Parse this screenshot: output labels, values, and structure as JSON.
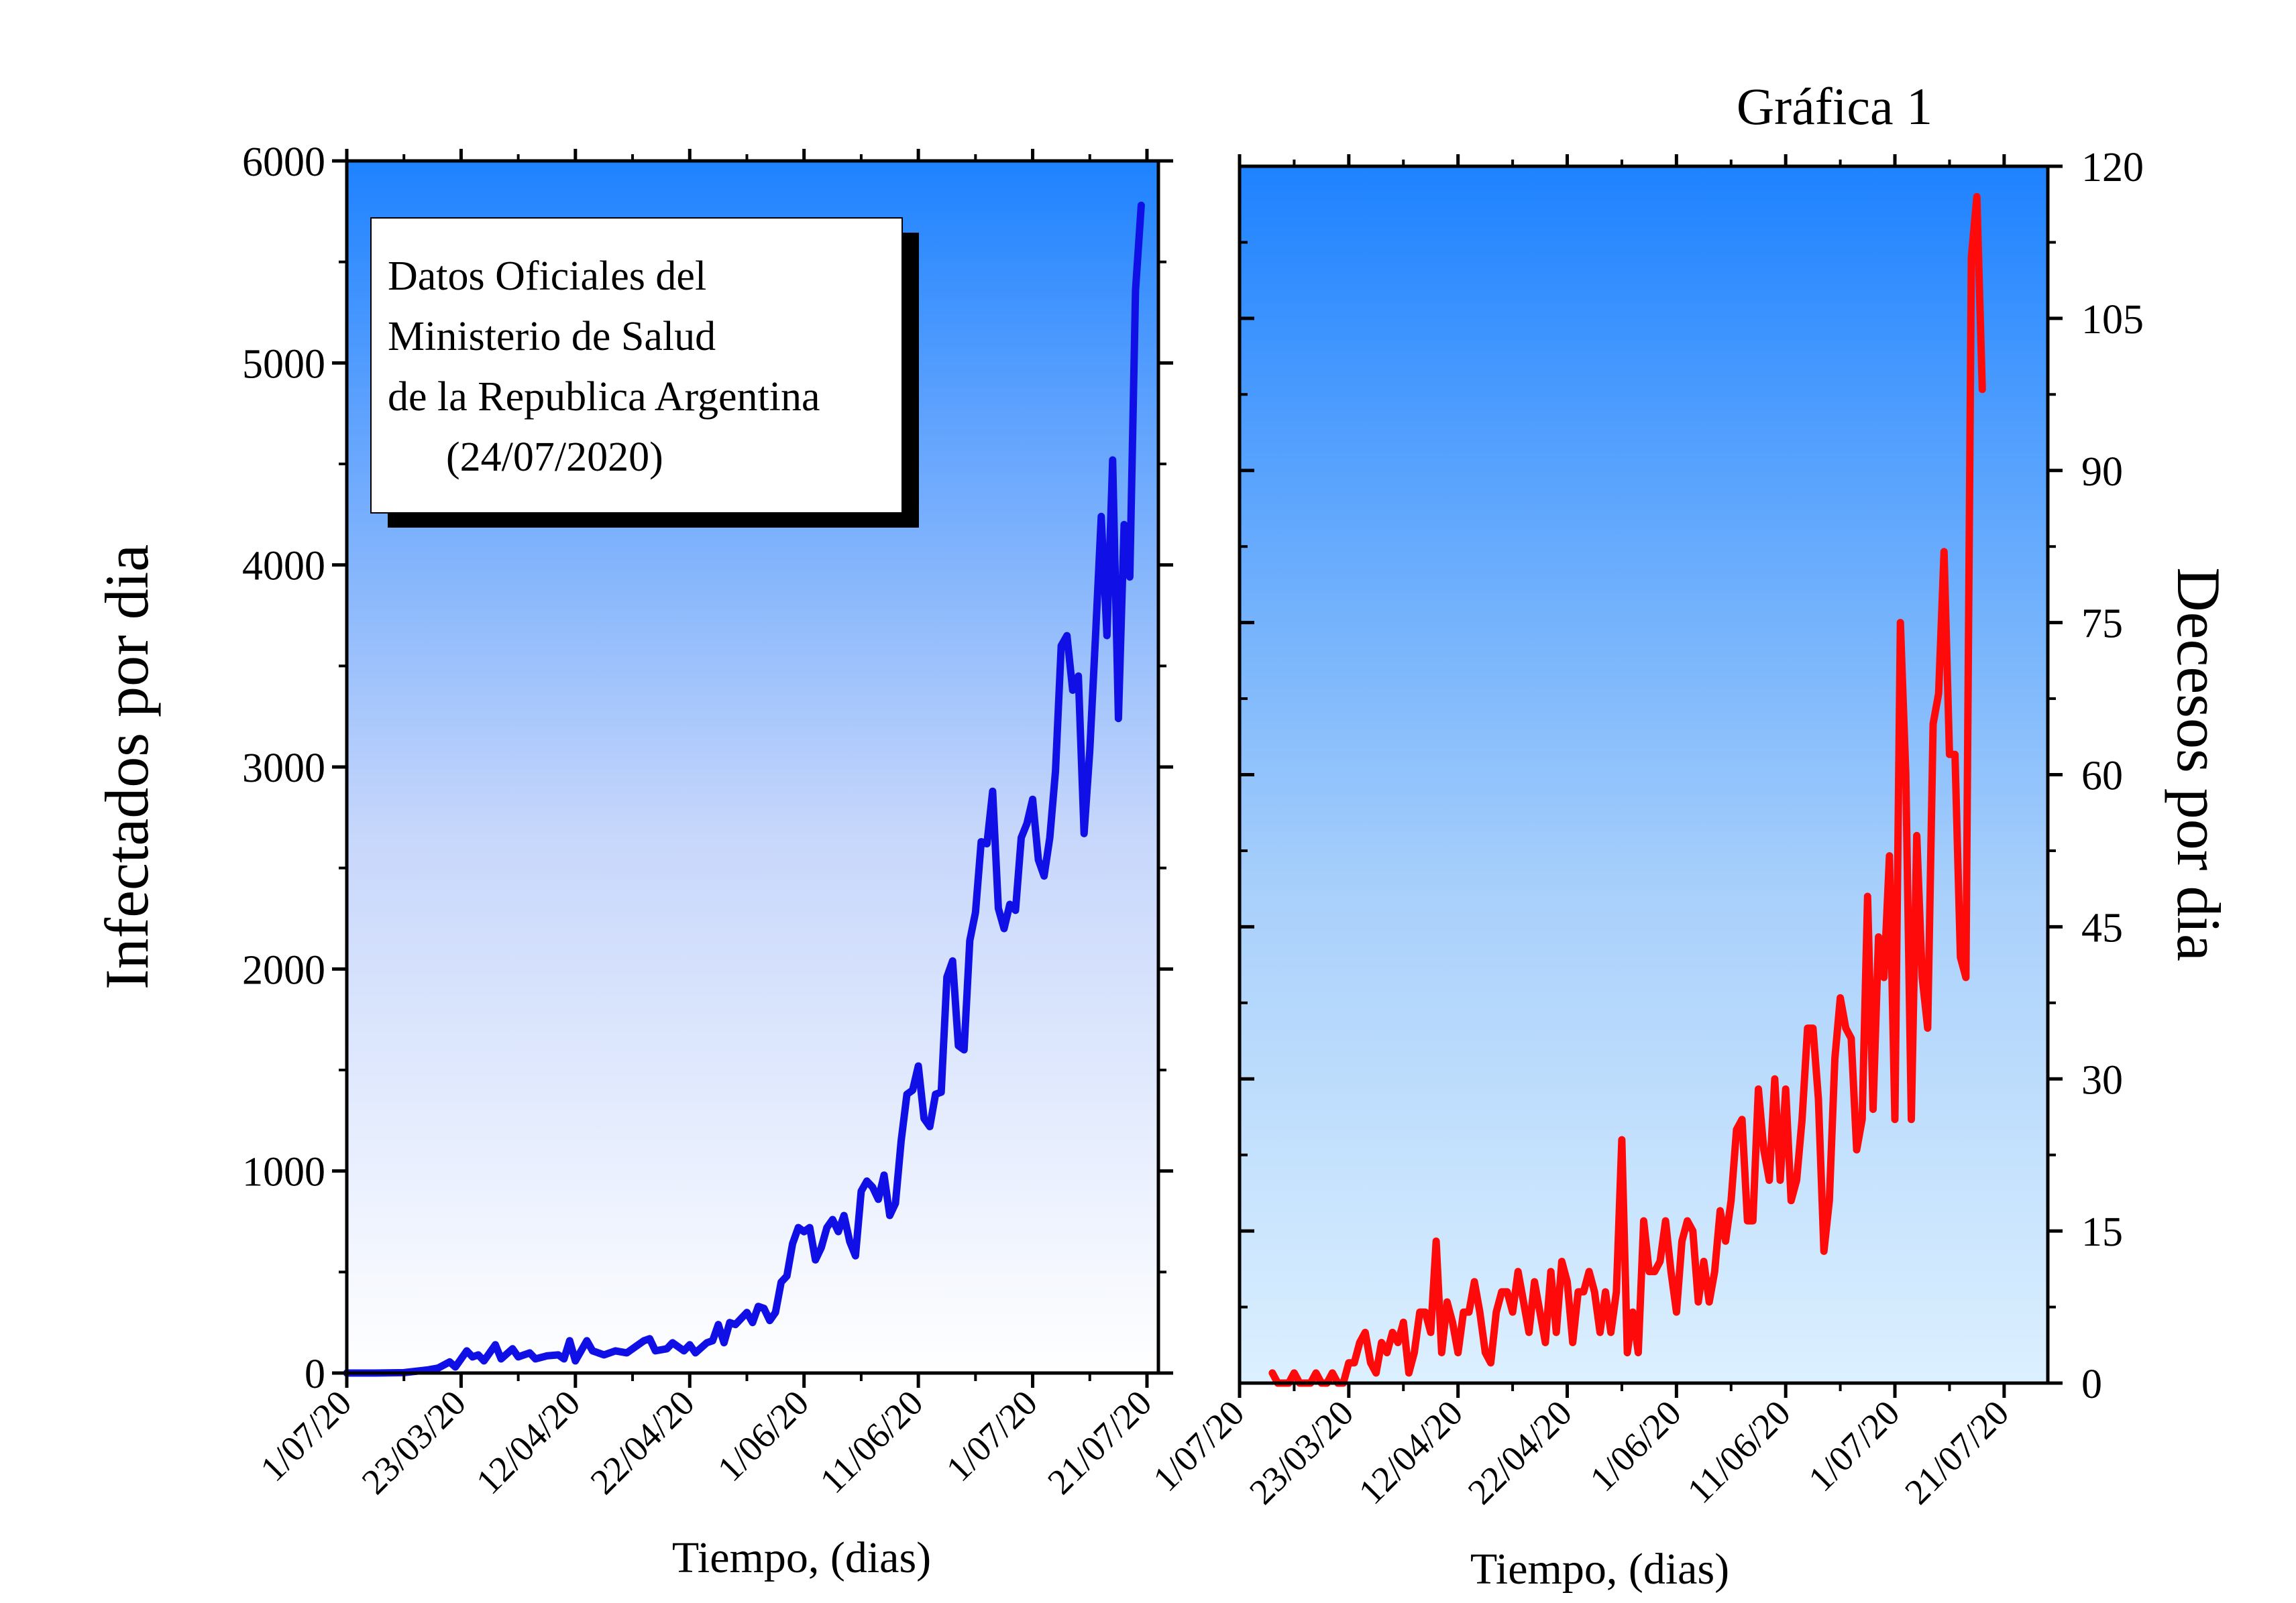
{
  "figure_title": "Gráfica 1",
  "annotation": {
    "lines": [
      "Datos Oficiales del",
      "Ministerio de Salud",
      "de la Republica Argentina",
      "(24/07/2020)"
    ]
  },
  "chart_data": [
    {
      "type": "line",
      "panel": "left",
      "xlabel": "Tiempo, (dias)",
      "ylabel": "Infectados por dia",
      "xlim": [
        0,
        142
      ],
      "ylim": [
        0,
        6000
      ],
      "y_ticks": [
        "0",
        "1000",
        "2000",
        "3000",
        "4000",
        "5000",
        "6000"
      ],
      "x_tick_positions": [
        0,
        20,
        40,
        60,
        80,
        100,
        120,
        140
      ],
      "x_tick_labels": [
        "1/07/20",
        "23/03/20",
        "12/04/20",
        "22/04/20",
        "1/06/20",
        "11/06/20",
        "1/07/20",
        "21/07/20"
      ],
      "background": {
        "top": "#1e82ff",
        "bottom": "#ffffff"
      },
      "series": [
        {
          "color": "#1010e6",
          "points": [
            [
              0,
              0
            ],
            [
              5,
              0
            ],
            [
              10,
              2
            ],
            [
              14,
              15
            ],
            [
              16,
              25
            ],
            [
              18,
              55
            ],
            [
              19,
              30
            ],
            [
              21,
              110
            ],
            [
              22,
              80
            ],
            [
              23,
              90
            ],
            [
              24,
              60
            ],
            [
              26,
              140
            ],
            [
              27,
              70
            ],
            [
              29,
              120
            ],
            [
              30,
              80
            ],
            [
              32,
              100
            ],
            [
              33,
              70
            ],
            [
              35,
              85
            ],
            [
              37,
              90
            ],
            [
              38,
              70
            ],
            [
              39,
              160
            ],
            [
              40,
              60
            ],
            [
              42,
              160
            ],
            [
              43,
              110
            ],
            [
              45,
              90
            ],
            [
              47,
              110
            ],
            [
              49,
              100
            ],
            [
              51,
              140
            ],
            [
              52,
              160
            ],
            [
              53,
              170
            ],
            [
              54,
              110
            ],
            [
              56,
              120
            ],
            [
              57,
              150
            ],
            [
              59,
              110
            ],
            [
              60,
              140
            ],
            [
              61,
              100
            ],
            [
              63,
              150
            ],
            [
              64,
              160
            ],
            [
              65,
              240
            ],
            [
              66,
              150
            ],
            [
              67,
              250
            ],
            [
              68,
              240
            ],
            [
              70,
              300
            ],
            [
              71,
              250
            ],
            [
              72,
              330
            ],
            [
              73,
              320
            ],
            [
              74,
              260
            ],
            [
              75,
              300
            ],
            [
              76,
              450
            ],
            [
              77,
              480
            ],
            [
              78,
              640
            ],
            [
              79,
              720
            ],
            [
              80,
              700
            ],
            [
              81,
              720
            ],
            [
              82,
              560
            ],
            [
              83,
              620
            ],
            [
              84,
              720
            ],
            [
              85,
              760
            ],
            [
              86,
              700
            ],
            [
              87,
              780
            ],
            [
              88,
              650
            ],
            [
              89,
              580
            ],
            [
              90,
              900
            ],
            [
              91,
              950
            ],
            [
              92,
              920
            ],
            [
              93,
              860
            ],
            [
              94,
              980
            ],
            [
              95,
              780
            ],
            [
              96,
              840
            ],
            [
              97,
              1150
            ],
            [
              98,
              1380
            ],
            [
              99,
              1400
            ],
            [
              100,
              1520
            ],
            [
              101,
              1260
            ],
            [
              102,
              1220
            ],
            [
              103,
              1380
            ],
            [
              104,
              1390
            ],
            [
              105,
              1960
            ],
            [
              106,
              2040
            ],
            [
              107,
              1620
            ],
            [
              108,
              1600
            ],
            [
              109,
              2140
            ],
            [
              110,
              2280
            ],
            [
              111,
              2630
            ],
            [
              112,
              2620
            ],
            [
              113,
              2880
            ],
            [
              114,
              2300
            ],
            [
              115,
              2200
            ],
            [
              116,
              2320
            ],
            [
              117,
              2290
            ],
            [
              118,
              2650
            ],
            [
              119,
              2720
            ],
            [
              120,
              2840
            ],
            [
              121,
              2540
            ],
            [
              122,
              2460
            ],
            [
              123,
              2650
            ],
            [
              124,
              2980
            ],
            [
              125,
              3600
            ],
            [
              126,
              3650
            ],
            [
              127,
              3380
            ],
            [
              128,
              3450
            ],
            [
              129,
              2670
            ],
            [
              130,
              3080
            ],
            [
              131,
              3650
            ],
            [
              132,
              4240
            ],
            [
              133,
              3650
            ],
            [
              134,
              4520
            ],
            [
              135,
              3240
            ],
            [
              136,
              4200
            ],
            [
              137,
              3940
            ],
            [
              138,
              5360
            ],
            [
              139,
              5780
            ]
          ]
        }
      ]
    },
    {
      "type": "line",
      "panel": "right",
      "xlabel": "Tiempo, (dias)",
      "ylabel": "Decesos por dia",
      "xlim": [
        0,
        148
      ],
      "ylim": [
        0,
        120
      ],
      "y_ticks": [
        "0",
        "15",
        "30",
        "45",
        "60",
        "75",
        "90",
        "105",
        "120"
      ],
      "x_tick_positions": [
        0,
        20,
        40,
        60,
        80,
        100,
        120,
        140
      ],
      "x_tick_labels": [
        "1/07/20",
        "23/03/20",
        "12/04/20",
        "22/04/20",
        "1/06/20",
        "11/06/20",
        "1/07/20",
        "21/07/20"
      ],
      "background": {
        "top": "#1e82ff",
        "bottom": "#dcf0ff"
      },
      "series": [
        {
          "color": "#ff0a0a",
          "points": [
            [
              6,
              1
            ],
            [
              7,
              0
            ],
            [
              9,
              0
            ],
            [
              10,
              1
            ],
            [
              11,
              0
            ],
            [
              13,
              0
            ],
            [
              14,
              1
            ],
            [
              15,
              0
            ],
            [
              16,
              0
            ],
            [
              17,
              1
            ],
            [
              18,
              0
            ],
            [
              19,
              0
            ],
            [
              20,
              2
            ],
            [
              21,
              2
            ],
            [
              22,
              4
            ],
            [
              23,
              5
            ],
            [
              24,
              2
            ],
            [
              25,
              1
            ],
            [
              26,
              4
            ],
            [
              27,
              3
            ],
            [
              28,
              5
            ],
            [
              29,
              4
            ],
            [
              30,
              6
            ],
            [
              31,
              1
            ],
            [
              32,
              3
            ],
            [
              33,
              7
            ],
            [
              34,
              7
            ],
            [
              35,
              5
            ],
            [
              36,
              14
            ],
            [
              37,
              3
            ],
            [
              38,
              8
            ],
            [
              39,
              6
            ],
            [
              40,
              3
            ],
            [
              41,
              7
            ],
            [
              42,
              7
            ],
            [
              43,
              10
            ],
            [
              44,
              7
            ],
            [
              45,
              3
            ],
            [
              46,
              2
            ],
            [
              47,
              7
            ],
            [
              48,
              9
            ],
            [
              49,
              9
            ],
            [
              50,
              7
            ],
            [
              51,
              11
            ],
            [
              52,
              8
            ],
            [
              53,
              5
            ],
            [
              54,
              10
            ],
            [
              55,
              7
            ],
            [
              56,
              4
            ],
            [
              57,
              11
            ],
            [
              58,
              5
            ],
            [
              59,
              12
            ],
            [
              60,
              10
            ],
            [
              61,
              4
            ],
            [
              62,
              9
            ],
            [
              63,
              9
            ],
            [
              64,
              11
            ],
            [
              65,
              9
            ],
            [
              66,
              5
            ],
            [
              67,
              9
            ],
            [
              68,
              5
            ],
            [
              69,
              9
            ],
            [
              70,
              24
            ],
            [
              71,
              3
            ],
            [
              72,
              7
            ],
            [
              73,
              3
            ],
            [
              74,
              16
            ],
            [
              75,
              11
            ],
            [
              76,
              11
            ],
            [
              77,
              12
            ],
            [
              78,
              16
            ],
            [
              79,
              11
            ],
            [
              80,
              7
            ],
            [
              81,
              14
            ],
            [
              82,
              16
            ],
            [
              83,
              15
            ],
            [
              84,
              8
            ],
            [
              85,
              12
            ],
            [
              86,
              8
            ],
            [
              87,
              11
            ],
            [
              88,
              17
            ],
            [
              89,
              14
            ],
            [
              90,
              18
            ],
            [
              91,
              25
            ],
            [
              92,
              26
            ],
            [
              93,
              16
            ],
            [
              94,
              16
            ],
            [
              95,
              29
            ],
            [
              96,
              23
            ],
            [
              97,
              20
            ],
            [
              98,
              30
            ],
            [
              99,
              20
            ],
            [
              100,
              29
            ],
            [
              101,
              18
            ],
            [
              102,
              20
            ],
            [
              103,
              26
            ],
            [
              104,
              35
            ],
            [
              105,
              35
            ],
            [
              106,
              28
            ],
            [
              107,
              13
            ],
            [
              108,
              18
            ],
            [
              109,
              32
            ],
            [
              110,
              38
            ],
            [
              111,
              35
            ],
            [
              112,
              34
            ],
            [
              113,
              23
            ],
            [
              114,
              26
            ],
            [
              115,
              48
            ],
            [
              116,
              27
            ],
            [
              117,
              44
            ],
            [
              118,
              40
            ],
            [
              119,
              52
            ],
            [
              120,
              26
            ],
            [
              121,
              75
            ],
            [
              122,
              60
            ],
            [
              123,
              26
            ],
            [
              124,
              54
            ],
            [
              125,
              40
            ],
            [
              126,
              35
            ],
            [
              127,
              65
            ],
            [
              128,
              68
            ],
            [
              129,
              82
            ],
            [
              130,
              62
            ],
            [
              131,
              62
            ],
            [
              132,
              42
            ],
            [
              133,
              40
            ],
            [
              134,
              111
            ],
            [
              135,
              117
            ],
            [
              136,
              98
            ]
          ]
        }
      ]
    }
  ]
}
